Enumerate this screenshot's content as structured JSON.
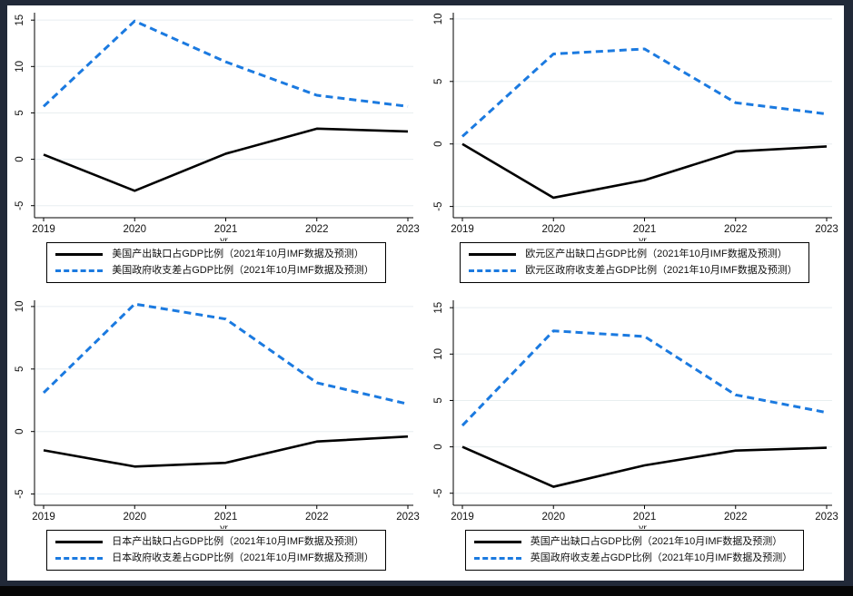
{
  "page": {
    "frame_color": "#212938",
    "bottom_strip_color": "#060606",
    "canvas_color": "#ffffff"
  },
  "colors": {
    "output_gap_line": "#000000",
    "balance_line": "#1b7ae0",
    "gridline": "#e8eef0",
    "axis": "#000000"
  },
  "chart_data": [
    {
      "type": "line",
      "region": "美国",
      "x": [
        2019,
        2020,
        2021,
        2022,
        2023
      ],
      "xlabel": "yr",
      "yticks": [
        -5,
        0,
        5,
        10,
        15
      ],
      "ylim": [
        -6.3,
        15.8
      ],
      "grid": true,
      "legend_position": "bottom",
      "series": [
        {
          "name": "美国产出缺口占GDP比例（2021年10月IMF数据及预测）",
          "style": "solid",
          "color": "#000000",
          "values": [
            0.5,
            -3.4,
            0.6,
            3.3,
            3.0
          ]
        },
        {
          "name": "美国政府收支差占GDP比例（2021年10月IMF数据及预测）",
          "style": "dashed",
          "color": "#1b7ae0",
          "values": [
            5.7,
            14.9,
            10.5,
            6.9,
            5.7
          ]
        }
      ]
    },
    {
      "type": "line",
      "region": "欧元区",
      "x": [
        2019,
        2020,
        2021,
        2022,
        2023
      ],
      "xlabel": "yr",
      "yticks": [
        -5,
        0,
        5,
        10
      ],
      "ylim": [
        -5.9,
        10.5
      ],
      "grid": true,
      "legend_position": "bottom",
      "series": [
        {
          "name": "欧元区产出缺口占GDP比例（2021年10月IMF数据及预测）",
          "style": "solid",
          "color": "#000000",
          "values": [
            0.0,
            -4.3,
            -2.9,
            -0.6,
            -0.2
          ]
        },
        {
          "name": "欧元区政府收支差占GDP比例（2021年10月IMF数据及预测）",
          "style": "dashed",
          "color": "#1b7ae0",
          "values": [
            0.6,
            7.2,
            7.6,
            3.3,
            2.4
          ]
        }
      ]
    },
    {
      "type": "line",
      "region": "日本",
      "x": [
        2019,
        2020,
        2021,
        2022,
        2023
      ],
      "xlabel": "yr",
      "yticks": [
        -5,
        0,
        5,
        10
      ],
      "ylim": [
        -5.9,
        10.5
      ],
      "grid": true,
      "legend_position": "bottom",
      "series": [
        {
          "name": "日本产出缺口占GDP比例（2021年10月IMF数据及预测）",
          "style": "solid",
          "color": "#000000",
          "values": [
            -1.5,
            -2.8,
            -2.5,
            -0.8,
            -0.4
          ]
        },
        {
          "name": "日本政府收支差占GDP比例（2021年10月IMF数据及预测）",
          "style": "dashed",
          "color": "#1b7ae0",
          "values": [
            3.1,
            10.2,
            9.0,
            3.9,
            2.2
          ]
        }
      ]
    },
    {
      "type": "line",
      "region": "英国",
      "x": [
        2019,
        2020,
        2021,
        2022,
        2023
      ],
      "xlabel": "yr",
      "yticks": [
        -5,
        0,
        5,
        10,
        15
      ],
      "ylim": [
        -6.3,
        15.8
      ],
      "grid": true,
      "legend_position": "bottom",
      "series": [
        {
          "name": "英国产出缺口占GDP比例（2021年10月IMF数据及预测）",
          "style": "solid",
          "color": "#000000",
          "values": [
            0.0,
            -4.3,
            -2.0,
            -0.4,
            -0.1
          ]
        },
        {
          "name": "英国政府收支差占GDP比例（2021年10月IMF数据及预测）",
          "style": "dashed",
          "color": "#1b7ae0",
          "values": [
            2.3,
            12.5,
            11.9,
            5.6,
            3.7
          ]
        }
      ]
    }
  ]
}
